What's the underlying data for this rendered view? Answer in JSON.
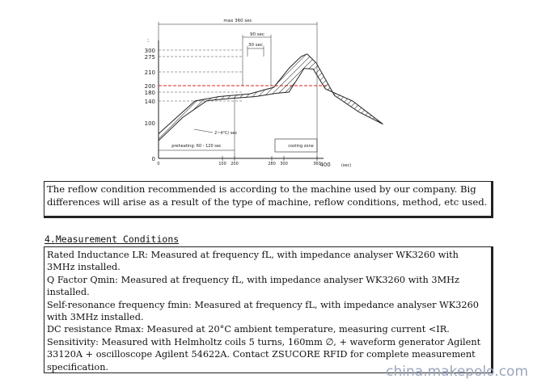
{
  "chart_data": {
    "type": "line",
    "ylabel": ":",
    "yticks": [
      "300",
      "275",
      "210",
      "200",
      "180",
      "140",
      "100",
      "0"
    ],
    "xticks": [
      "0",
      "100",
      "200",
      "280",
      "300",
      "360",
      "400"
    ],
    "x_unit": "(sec)",
    "red_line_label": "200",
    "annotations": {
      "max_window": "max 360 sec",
      "peak_window": "90 sec",
      "peak_inner_window": "30 sec",
      "preheating": "preheating: 60 - 120 sec",
      "ramp_rate": "2~4°C/ sec",
      "cooling": "cooling zone"
    },
    "band_upper": [
      [
        0,
        60
      ],
      [
        30,
        110
      ],
      [
        60,
        140
      ],
      [
        100,
        160
      ],
      [
        150,
        172
      ],
      [
        190,
        195
      ],
      [
        215,
        225
      ],
      [
        235,
        275
      ],
      [
        245,
        285
      ],
      [
        260,
        248
      ],
      [
        290,
        165
      ],
      [
        330,
        120
      ]
    ],
    "band_lower": [
      [
        0,
        35
      ],
      [
        40,
        110
      ],
      [
        80,
        142
      ],
      [
        120,
        152
      ],
      [
        160,
        160
      ],
      [
        195,
        175
      ],
      [
        215,
        180
      ],
      [
        240,
        225
      ],
      [
        255,
        222
      ],
      [
        275,
        190
      ],
      [
        320,
        140
      ],
      [
        370,
        95
      ]
    ],
    "colors": {
      "profile_line": "#222222",
      "reference_line": "#e02020"
    }
  },
  "note": "The reflow condition recommended is according to the machine used by our company. Big differences will arise as a result of the type of machine, reflow conditions, method, etc used.",
  "section": {
    "number": "4.",
    "title": "Measurement  Conditions"
  },
  "measurements": [
    "Rated Inductance LR: Measured at frequency fL, with impedance analyser WK3260 with 3MHz installed.",
    "Q Factor Qmin: Measured at frequency fL, with impedance analyser WK3260 with 3MHz installed.",
    "Self-resonance frequency fmin:  Measured at frequency fL, with impedance analyser WK3260 with 3MHz installed.",
    "DC resistance Rmax: Measured at 20°C ambient temperature, measuring current <IR.",
    "Sensitivity: Measured with Helmholtz coils 5 turns, 160mm ∅, + waveform generator Agilent 33120A + oscilloscope Agilent 54622A. Contact ZSUCORE  RFID for complete measurement specification."
  ],
  "watermark": "china.makepolo.com"
}
